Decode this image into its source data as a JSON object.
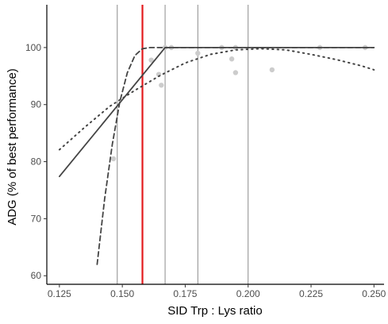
{
  "chart_data": {
    "type": "scatter",
    "xlabel": "SID Trp : Lys ratio",
    "ylabel": "ADG (% of best performance)",
    "xlim": [
      0.12,
      0.254
    ],
    "ylim": [
      58.5,
      107.5
    ],
    "x_ticks": [
      0.125,
      0.15,
      0.175,
      0.2,
      0.225,
      0.25
    ],
    "x_tick_labels": [
      "0.125",
      "0.150",
      "0.175",
      "0.200",
      "0.225",
      "0.250"
    ],
    "y_ticks": [
      60,
      70,
      80,
      90,
      100
    ],
    "y_tick_labels": [
      "60",
      "70",
      "80",
      "90",
      "100"
    ],
    "grid": false,
    "points": [
      {
        "x": 0.1465,
        "y": 80.5
      },
      {
        "x": 0.1615,
        "y": 97.8
      },
      {
        "x": 0.1645,
        "y": 95.3
      },
      {
        "x": 0.1655,
        "y": 93.4
      },
      {
        "x": 0.167,
        "y": 100.0
      },
      {
        "x": 0.1695,
        "y": 100.0
      },
      {
        "x": 0.18,
        "y": 99.0
      },
      {
        "x": 0.1895,
        "y": 100.0
      },
      {
        "x": 0.1935,
        "y": 98.0
      },
      {
        "x": 0.195,
        "y": 95.6
      },
      {
        "x": 0.195,
        "y": 100.0
      },
      {
        "x": 0.2095,
        "y": 96.1
      },
      {
        "x": 0.2285,
        "y": 100.0
      },
      {
        "x": 0.2465,
        "y": 100.0
      }
    ],
    "vertical_lines": [
      {
        "x": 0.148,
        "color": "#7f7f7f"
      },
      {
        "x": 0.167,
        "color": "#7f7f7f"
      },
      {
        "x": 0.18,
        "color": "#7f7f7f"
      },
      {
        "x": 0.2,
        "color": "#7f7f7f"
      },
      {
        "x": 0.158,
        "color": "#e31a1c"
      }
    ],
    "series": [
      {
        "style": "solid",
        "color": "#444444",
        "points": [
          [
            0.125,
            77.4
          ],
          [
            0.167,
            100.0
          ],
          [
            0.25,
            100.0
          ]
        ]
      },
      {
        "style": "dashed",
        "color": "#444444",
        "points": [
          [
            0.14,
            62.0
          ],
          [
            0.143,
            73.5
          ],
          [
            0.146,
            83.0
          ],
          [
            0.149,
            90.5
          ],
          [
            0.152,
            95.6
          ],
          [
            0.155,
            98.6
          ],
          [
            0.158,
            99.8
          ],
          [
            0.161,
            100.0
          ],
          [
            0.25,
            100.0
          ]
        ]
      },
      {
        "style": "dotted",
        "color": "#444444",
        "points": [
          [
            0.125,
            82.1
          ],
          [
            0.135,
            86.0
          ],
          [
            0.145,
            89.7
          ],
          [
            0.155,
            92.5
          ],
          [
            0.165,
            95.1
          ],
          [
            0.175,
            97.3
          ],
          [
            0.185,
            98.8
          ],
          [
            0.195,
            99.6
          ],
          [
            0.205,
            99.8
          ],
          [
            0.215,
            99.6
          ],
          [
            0.225,
            98.8
          ],
          [
            0.235,
            97.9
          ],
          [
            0.245,
            96.8
          ],
          [
            0.25,
            96.1
          ]
        ]
      }
    ]
  }
}
